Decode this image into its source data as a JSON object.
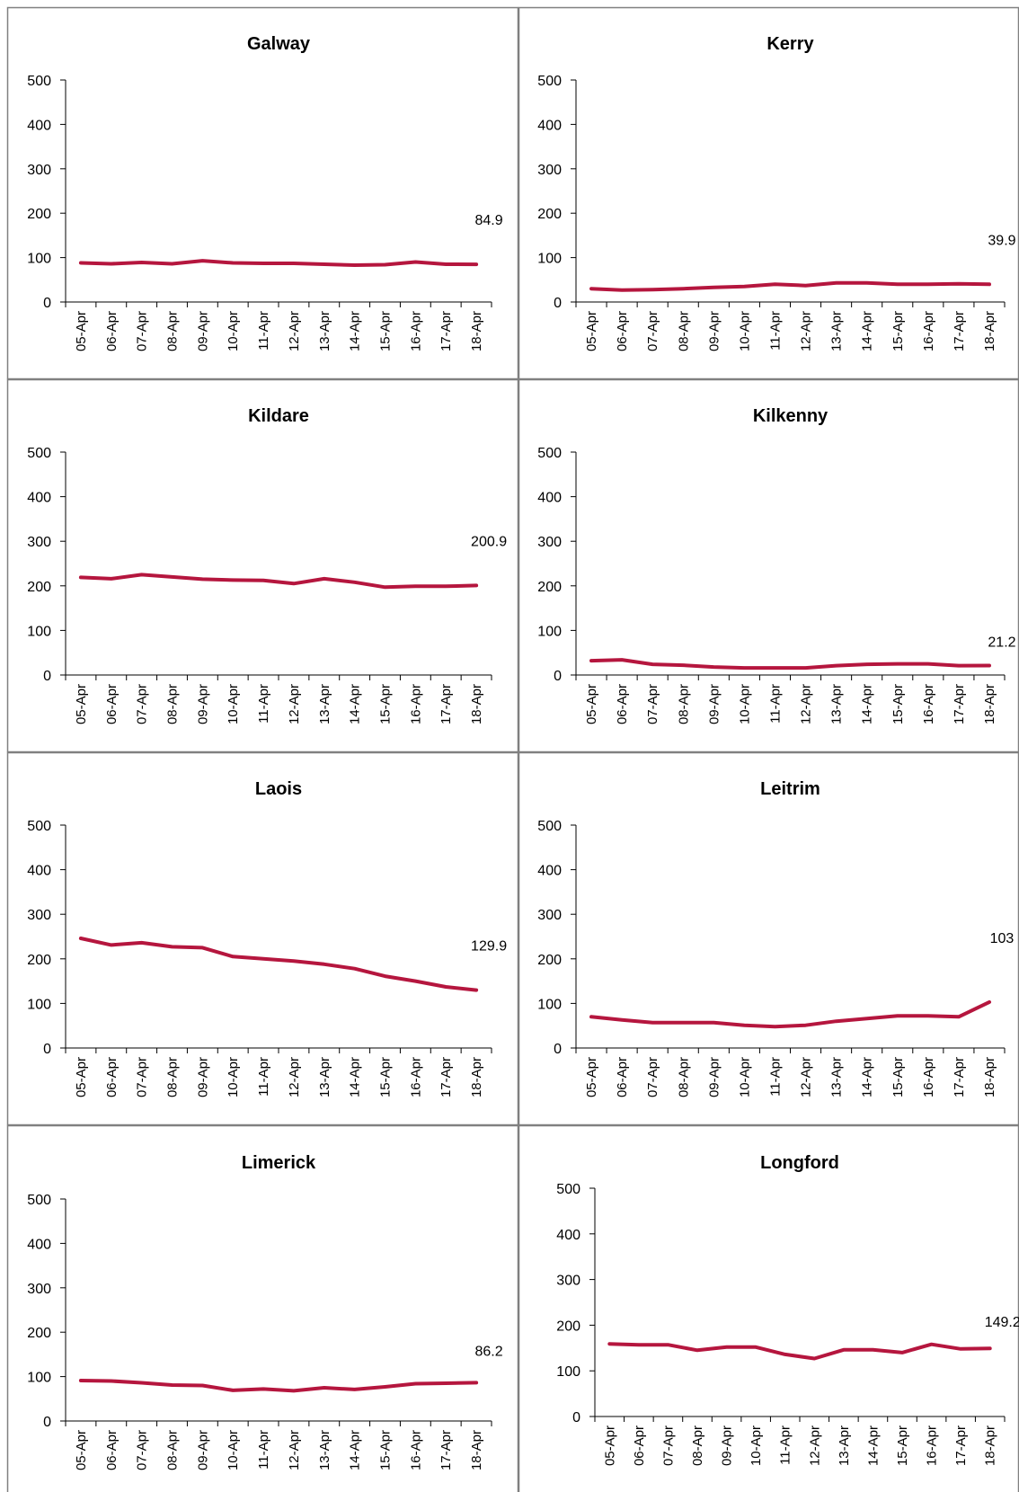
{
  "colors": {
    "line": "#B5163E",
    "axis": "#000000",
    "panel_border": "#808080",
    "background": "#FFFFFF"
  },
  "shared": {
    "x_ticks": [
      "05-Apr",
      "06-Apr",
      "07-Apr",
      "08-Apr",
      "09-Apr",
      "10-Apr",
      "11-Apr",
      "12-Apr",
      "13-Apr",
      "14-Apr",
      "15-Apr",
      "16-Apr",
      "17-Apr",
      "18-Apr"
    ],
    "y_ticks": [
      0,
      100,
      200,
      300,
      400,
      500
    ]
  },
  "chart_data": [
    {
      "type": "line",
      "title": "Galway",
      "ylim": [
        0,
        500
      ],
      "grid": false,
      "categories": [
        "05-Apr",
        "06-Apr",
        "07-Apr",
        "08-Apr",
        "09-Apr",
        "10-Apr",
        "11-Apr",
        "12-Apr",
        "13-Apr",
        "14-Apr",
        "15-Apr",
        "16-Apr",
        "17-Apr",
        "18-Apr"
      ],
      "values": [
        88,
        86,
        89,
        86,
        93,
        88,
        87,
        87,
        85,
        83,
        84,
        90,
        85,
        84.9
      ],
      "end_label": "84.9"
    },
    {
      "type": "line",
      "title": "Kerry",
      "ylim": [
        0,
        500
      ],
      "grid": false,
      "categories": [
        "05-Apr",
        "06-Apr",
        "07-Apr",
        "08-Apr",
        "09-Apr",
        "10-Apr",
        "11-Apr",
        "12-Apr",
        "13-Apr",
        "14-Apr",
        "15-Apr",
        "16-Apr",
        "17-Apr",
        "18-Apr"
      ],
      "values": [
        30,
        27,
        28,
        30,
        33,
        35,
        40,
        37,
        43,
        43,
        40,
        40,
        41,
        39.9
      ],
      "end_label": "39.9"
    },
    {
      "type": "line",
      "title": "Kildare",
      "ylim": [
        0,
        500
      ],
      "grid": false,
      "categories": [
        "05-Apr",
        "06-Apr",
        "07-Apr",
        "08-Apr",
        "09-Apr",
        "10-Apr",
        "11-Apr",
        "12-Apr",
        "13-Apr",
        "14-Apr",
        "15-Apr",
        "16-Apr",
        "17-Apr",
        "18-Apr"
      ],
      "values": [
        219,
        216,
        225,
        220,
        215,
        213,
        212,
        205,
        216,
        208,
        197,
        199,
        199,
        200.9
      ],
      "end_label": "200.9"
    },
    {
      "type": "line",
      "title": "Kilkenny",
      "ylim": [
        0,
        500
      ],
      "grid": false,
      "categories": [
        "05-Apr",
        "06-Apr",
        "07-Apr",
        "08-Apr",
        "09-Apr",
        "10-Apr",
        "11-Apr",
        "12-Apr",
        "13-Apr",
        "14-Apr",
        "15-Apr",
        "16-Apr",
        "17-Apr",
        "18-Apr"
      ],
      "values": [
        32,
        34,
        24,
        22,
        18,
        16,
        16,
        16,
        21,
        24,
        25,
        25,
        21,
        21.2
      ],
      "end_label": "21.2"
    },
    {
      "type": "line",
      "title": "Laois",
      "ylim": [
        0,
        500
      ],
      "grid": false,
      "categories": [
        "05-Apr",
        "06-Apr",
        "07-Apr",
        "08-Apr",
        "09-Apr",
        "10-Apr",
        "11-Apr",
        "12-Apr",
        "13-Apr",
        "14-Apr",
        "15-Apr",
        "16-Apr",
        "17-Apr",
        "18-Apr"
      ],
      "values": [
        246,
        231,
        236,
        227,
        225,
        205,
        200,
        195,
        188,
        178,
        161,
        150,
        137,
        129.9
      ],
      "end_label": "129.9"
    },
    {
      "type": "line",
      "title": "Leitrim",
      "ylim": [
        0,
        500
      ],
      "grid": false,
      "categories": [
        "05-Apr",
        "06-Apr",
        "07-Apr",
        "08-Apr",
        "09-Apr",
        "10-Apr",
        "11-Apr",
        "12-Apr",
        "13-Apr",
        "14-Apr",
        "15-Apr",
        "16-Apr",
        "17-Apr",
        "18-Apr"
      ],
      "values": [
        70,
        63,
        57,
        57,
        57,
        51,
        48,
        51,
        60,
        66,
        72,
        72,
        70,
        103
      ],
      "end_label": "103"
    },
    {
      "type": "line",
      "title": "Limerick",
      "ylim": [
        0,
        500
      ],
      "grid": false,
      "categories": [
        "05-Apr",
        "06-Apr",
        "07-Apr",
        "08-Apr",
        "09-Apr",
        "10-Apr",
        "11-Apr",
        "12-Apr",
        "13-Apr",
        "14-Apr",
        "15-Apr",
        "16-Apr",
        "17-Apr",
        "18-Apr"
      ],
      "values": [
        91,
        90,
        86,
        81,
        80,
        69,
        72,
        68,
        75,
        71,
        77,
        84,
        85,
        86.2
      ],
      "end_label": "86.2"
    },
    {
      "type": "line",
      "title": "Longford",
      "ylim": [
        0,
        500
      ],
      "grid": false,
      "categories": [
        "05-Apr",
        "06-Apr",
        "07-Apr",
        "08-Apr",
        "09-Apr",
        "10-Apr",
        "11-Apr",
        "12-Apr",
        "13-Apr",
        "14-Apr",
        "15-Apr",
        "16-Apr",
        "17-Apr",
        "18-Apr"
      ],
      "values": [
        159,
        157,
        157,
        145,
        152,
        152,
        136,
        127,
        146,
        146,
        140,
        158,
        148,
        149.2
      ],
      "end_label": "149.2"
    }
  ]
}
